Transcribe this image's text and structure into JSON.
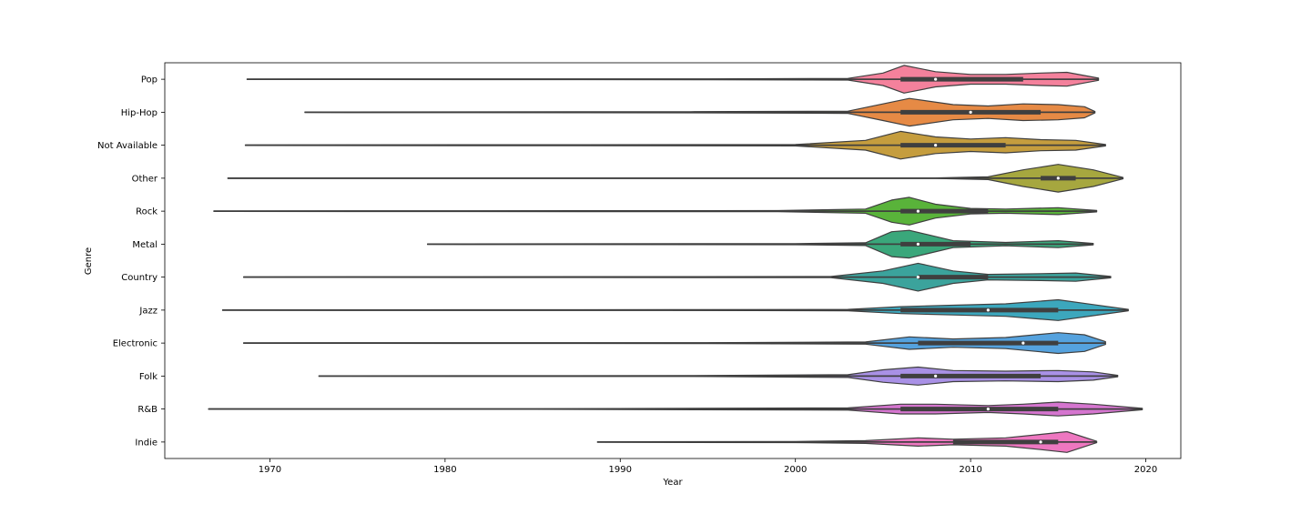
{
  "chart_data": {
    "type": "violin",
    "orientation": "horizontal",
    "xlabel": "Year",
    "ylabel": "Genre",
    "xlim": [
      1964,
      2022
    ],
    "xticks": [
      1970,
      1980,
      1990,
      2000,
      2010,
      2020
    ],
    "grid": false,
    "legend": "none",
    "categories": [
      "Pop",
      "Hip-Hop",
      "Not Available",
      "Other",
      "Rock",
      "Metal",
      "Country",
      "Jazz",
      "Electronic",
      "Folk",
      "R&B",
      "Indie"
    ],
    "series": [
      {
        "category": "Pop",
        "color": "#f4819c",
        "min": 1968.7,
        "max": 2017.3,
        "q1": 2006.0,
        "median": 2008.0,
        "q3": 2013.0,
        "whisker_low": 1996.0,
        "whisker_high": 2017.3,
        "density": [
          [
            1968.7,
            0.02
          ],
          [
            1995,
            0.03
          ],
          [
            2003,
            0.06
          ],
          [
            2005,
            0.45
          ],
          [
            2006.2,
            1.0
          ],
          [
            2008,
            0.55
          ],
          [
            2010,
            0.35
          ],
          [
            2012,
            0.35
          ],
          [
            2014,
            0.45
          ],
          [
            2015.5,
            0.5
          ],
          [
            2017.3,
            0.08
          ]
        ]
      },
      {
        "category": "Hip-Hop",
        "color": "#e68a45",
        "min": 1972.0,
        "max": 2017.1,
        "q1": 2006.0,
        "median": 2010.0,
        "q3": 2014.0,
        "whisker_low": 1994.0,
        "whisker_high": 2017.1,
        "density": [
          [
            1972,
            0.02
          ],
          [
            1994,
            0.04
          ],
          [
            2003,
            0.08
          ],
          [
            2005,
            0.6
          ],
          [
            2006.5,
            1.0
          ],
          [
            2009,
            0.55
          ],
          [
            2011,
            0.45
          ],
          [
            2013,
            0.6
          ],
          [
            2015,
            0.55
          ],
          [
            2016.5,
            0.4
          ],
          [
            2017.1,
            0.05
          ]
        ]
      },
      {
        "category": "Not Available",
        "color": "#c59d3e",
        "min": 1968.6,
        "max": 2017.7,
        "q1": 2006.0,
        "median": 2008.0,
        "q3": 2012.0,
        "whisker_low": 1968.6,
        "whisker_high": 2017.7,
        "density": [
          [
            1968.6,
            0.02
          ],
          [
            2000,
            0.05
          ],
          [
            2004,
            0.35
          ],
          [
            2006,
            1.0
          ],
          [
            2008,
            0.6
          ],
          [
            2010,
            0.45
          ],
          [
            2012,
            0.55
          ],
          [
            2014,
            0.4
          ],
          [
            2016,
            0.35
          ],
          [
            2017.7,
            0.05
          ]
        ]
      },
      {
        "category": "Other",
        "color": "#a6a73f",
        "min": 1967.6,
        "max": 2018.7,
        "q1": 2014.0,
        "median": 2015.0,
        "q3": 2016.0,
        "whisker_low": 1967.6,
        "whisker_high": 2018.7,
        "density": [
          [
            1967.6,
            0.02
          ],
          [
            2008,
            0.02
          ],
          [
            2011,
            0.1
          ],
          [
            2013,
            0.6
          ],
          [
            2015,
            1.0
          ],
          [
            2017,
            0.6
          ],
          [
            2018.7,
            0.05
          ]
        ]
      },
      {
        "category": "Rock",
        "color": "#59b33a",
        "min": 1966.8,
        "max": 2017.2,
        "q1": 2006.0,
        "median": 2007.0,
        "q3": 2011.0,
        "whisker_low": 1999.0,
        "whisker_high": 2017.2,
        "density": [
          [
            1966.8,
            0.02
          ],
          [
            1999,
            0.04
          ],
          [
            2004,
            0.15
          ],
          [
            2005.5,
            0.8
          ],
          [
            2006.5,
            1.0
          ],
          [
            2008,
            0.5
          ],
          [
            2010,
            0.2
          ],
          [
            2012,
            0.15
          ],
          [
            2015,
            0.25
          ],
          [
            2017.2,
            0.05
          ]
        ]
      },
      {
        "category": "Metal",
        "color": "#3aa77b",
        "min": 1979.0,
        "max": 2017.0,
        "q1": 2006.0,
        "median": 2007.0,
        "q3": 2010.0,
        "whisker_low": 2000.0,
        "whisker_high": 2017.0,
        "density": [
          [
            1979,
            0.02
          ],
          [
            2000,
            0.04
          ],
          [
            2004,
            0.1
          ],
          [
            2005.5,
            0.9
          ],
          [
            2006.5,
            1.0
          ],
          [
            2007.5,
            0.7
          ],
          [
            2009,
            0.25
          ],
          [
            2012,
            0.12
          ],
          [
            2015,
            0.25
          ],
          [
            2017,
            0.05
          ]
        ]
      },
      {
        "category": "Country",
        "color": "#3ba39c",
        "min": 1968.5,
        "max": 2018.0,
        "q1": 2007.0,
        "median": 2007.0,
        "q3": 2011.0,
        "whisker_low": 1968.5,
        "whisker_high": 2018.0,
        "density": [
          [
            1968.5,
            0.02
          ],
          [
            2002,
            0.04
          ],
          [
            2005,
            0.45
          ],
          [
            2007,
            1.0
          ],
          [
            2009,
            0.45
          ],
          [
            2011,
            0.2
          ],
          [
            2014,
            0.25
          ],
          [
            2016,
            0.3
          ],
          [
            2018,
            0.05
          ]
        ]
      },
      {
        "category": "Jazz",
        "color": "#3ca7bd",
        "min": 1967.3,
        "max": 2019.0,
        "q1": 2006.0,
        "median": 2011.0,
        "q3": 2015.0,
        "whisker_low": 1993.0,
        "whisker_high": 2019.0,
        "density": [
          [
            1967.3,
            0.02
          ],
          [
            1993,
            0.03
          ],
          [
            2003,
            0.05
          ],
          [
            2006,
            0.25
          ],
          [
            2009,
            0.35
          ],
          [
            2012,
            0.45
          ],
          [
            2015,
            0.75
          ],
          [
            2017,
            0.4
          ],
          [
            2019,
            0.05
          ]
        ]
      },
      {
        "category": "Electronic",
        "color": "#55a2de",
        "min": 1968.5,
        "max": 2017.7,
        "q1": 2007.0,
        "median": 2013.0,
        "q3": 2015.0,
        "whisker_low": 1995.0,
        "whisker_high": 2017.7,
        "density": [
          [
            1968.5,
            0.02
          ],
          [
            1995,
            0.03
          ],
          [
            2004,
            0.08
          ],
          [
            2006.5,
            0.45
          ],
          [
            2009,
            0.3
          ],
          [
            2012,
            0.4
          ],
          [
            2015,
            0.75
          ],
          [
            2016.5,
            0.6
          ],
          [
            2017.7,
            0.1
          ]
        ]
      },
      {
        "category": "Folk",
        "color": "#a991e6",
        "min": 1972.8,
        "max": 2018.4,
        "q1": 2006.0,
        "median": 2008.0,
        "q3": 2014.0,
        "whisker_low": 1994.0,
        "whisker_high": 2018.4,
        "density": [
          [
            1972.8,
            0.02
          ],
          [
            1994,
            0.03
          ],
          [
            2003,
            0.1
          ],
          [
            2005,
            0.45
          ],
          [
            2007,
            0.65
          ],
          [
            2009,
            0.4
          ],
          [
            2012,
            0.35
          ],
          [
            2015,
            0.4
          ],
          [
            2017,
            0.3
          ],
          [
            2018.4,
            0.05
          ]
        ]
      },
      {
        "category": "R&B",
        "color": "#d575cf",
        "min": 1966.5,
        "max": 2019.8,
        "q1": 2006.0,
        "median": 2011.0,
        "q3": 2015.0,
        "whisker_low": 1966.5,
        "whisker_high": 2019.8,
        "density": [
          [
            1966.5,
            0.02
          ],
          [
            1985,
            0.02
          ],
          [
            2003,
            0.08
          ],
          [
            2006,
            0.35
          ],
          [
            2008,
            0.35
          ],
          [
            2011,
            0.25
          ],
          [
            2013,
            0.35
          ],
          [
            2015,
            0.5
          ],
          [
            2017,
            0.35
          ],
          [
            2019.8,
            0.05
          ]
        ]
      },
      {
        "category": "Indie",
        "color": "#ee77c0",
        "min": 1988.7,
        "max": 2017.2,
        "q1": 2009.0,
        "median": 2014.0,
        "q3": 2015.0,
        "whisker_low": 2000.0,
        "whisker_high": 2017.2,
        "density": [
          [
            1988.7,
            0.02
          ],
          [
            2000,
            0.04
          ],
          [
            2004,
            0.1
          ],
          [
            2007,
            0.3
          ],
          [
            2009,
            0.2
          ],
          [
            2012,
            0.3
          ],
          [
            2014,
            0.55
          ],
          [
            2015.5,
            0.75
          ],
          [
            2017.2,
            0.05
          ]
        ]
      }
    ]
  }
}
